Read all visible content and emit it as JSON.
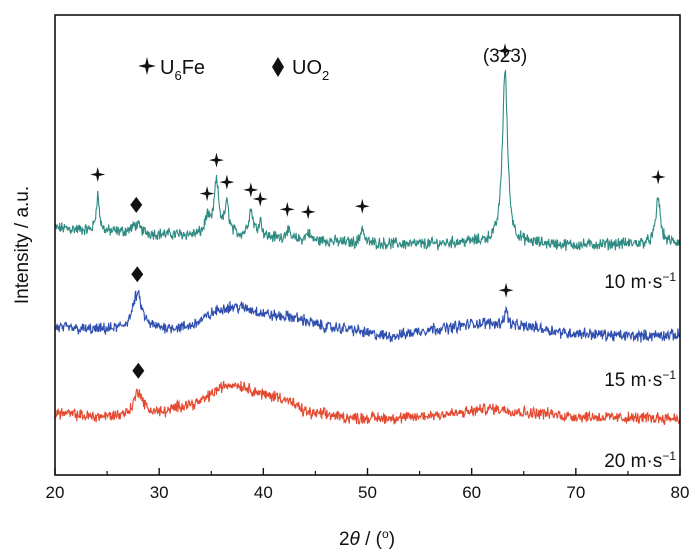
{
  "chart_data": {
    "type": "line",
    "xlabel_prefix": "2",
    "xlabel_theta": "θ",
    "xlabel_suffix": " / (",
    "xlabel_degree": "o",
    "xlabel_close": ")",
    "ylabel": "Intensity / a.u.",
    "xlim": [
      20,
      80
    ],
    "x_ticks": [
      20,
      30,
      40,
      50,
      60,
      70,
      80
    ],
    "grid": false,
    "legend": [
      {
        "base": "U",
        "sub": "6",
        "tail": "Fe",
        "marker": "star"
      },
      {
        "base": "UO",
        "sub": "2",
        "tail": "",
        "marker": "diamond"
      }
    ],
    "peak_annotation": {
      "text": "(323)",
      "x": 63.2
    },
    "series": [
      {
        "label_value": "10",
        "label_unit": " m·s",
        "label_exp": "−1",
        "color": "#2e8b82",
        "baseline": [
          [
            20,
            0.4
          ],
          [
            25,
            0.31
          ],
          [
            30,
            0.25
          ],
          [
            35,
            0.22
          ],
          [
            40,
            0.17
          ],
          [
            45,
            0.1
          ],
          [
            50,
            0.04
          ],
          [
            55,
            0.02
          ],
          [
            60,
            0.07
          ],
          [
            65,
            0.04
          ],
          [
            70,
            0.0
          ],
          [
            75,
            0.03
          ],
          [
            80,
            0.05
          ]
        ],
        "peaks": [
          {
            "x": 24.1,
            "h": 0.88,
            "w": 0.18
          },
          {
            "x": 27.8,
            "h": 0.2,
            "w": 0.5
          },
          {
            "x": 34.6,
            "h": 0.4,
            "w": 0.25
          },
          {
            "x": 35.5,
            "h": 1.25,
            "w": 0.28
          },
          {
            "x": 36.5,
            "h": 0.7,
            "w": 0.25
          },
          {
            "x": 38.8,
            "h": 0.62,
            "w": 0.28
          },
          {
            "x": 39.7,
            "h": 0.38,
            "w": 0.2
          },
          {
            "x": 42.3,
            "h": 0.22,
            "w": 0.22
          },
          {
            "x": 44.3,
            "h": 0.2,
            "w": 0.22
          },
          {
            "x": 49.5,
            "h": 0.4,
            "w": 0.18
          },
          {
            "x": 63.2,
            "h": 4.1,
            "w": 0.3
          },
          {
            "x": 77.9,
            "h": 1.1,
            "w": 0.25
          }
        ],
        "star_peaks": [
          24.1,
          34.6,
          35.5,
          36.5,
          38.8,
          39.7,
          42.3,
          44.3,
          49.5,
          63.2,
          77.9
        ],
        "diamond_peaks": [
          27.8
        ]
      },
      {
        "label_value": "15",
        "label_unit": " m·s",
        "label_exp": "−1",
        "color": "#2f4fb0",
        "baseline": [
          [
            20,
            0.05
          ],
          [
            24,
            0.0
          ],
          [
            28,
            0.0
          ],
          [
            32,
            0.05
          ],
          [
            37,
            0.55
          ],
          [
            42,
            0.32
          ],
          [
            47,
            0.05
          ],
          [
            52,
            -0.14
          ],
          [
            57,
            0.04
          ],
          [
            61,
            0.16
          ],
          [
            65,
            0.08
          ],
          [
            70,
            -0.08
          ],
          [
            75,
            -0.14
          ],
          [
            80,
            -0.12
          ]
        ],
        "peaks": [
          {
            "x": 27.9,
            "h": 0.85,
            "w": 0.55
          },
          {
            "x": 63.3,
            "h": 0.36,
            "w": 0.22
          }
        ],
        "star_peaks": [
          63.3
        ],
        "diamond_peaks": [
          27.9
        ]
      },
      {
        "label_value": "20",
        "label_unit": " m·s",
        "label_exp": "−1",
        "color": "#e4482f",
        "baseline": [
          [
            20,
            0.12
          ],
          [
            24,
            0.03
          ],
          [
            27,
            0.05
          ],
          [
            30,
            0.12
          ],
          [
            33,
            0.33
          ],
          [
            37,
            0.8
          ],
          [
            41,
            0.52
          ],
          [
            45,
            0.1
          ],
          [
            49,
            0.0
          ],
          [
            53,
            0.0
          ],
          [
            58,
            0.1
          ],
          [
            62,
            0.22
          ],
          [
            66,
            0.12
          ],
          [
            70,
            0.04
          ],
          [
            75,
            0.0
          ],
          [
            80,
            0.0
          ]
        ],
        "peaks": [
          {
            "x": 28.0,
            "h": 0.58,
            "w": 0.5
          }
        ],
        "star_peaks": [],
        "diamond_peaks": [
          28.0
        ]
      }
    ]
  }
}
